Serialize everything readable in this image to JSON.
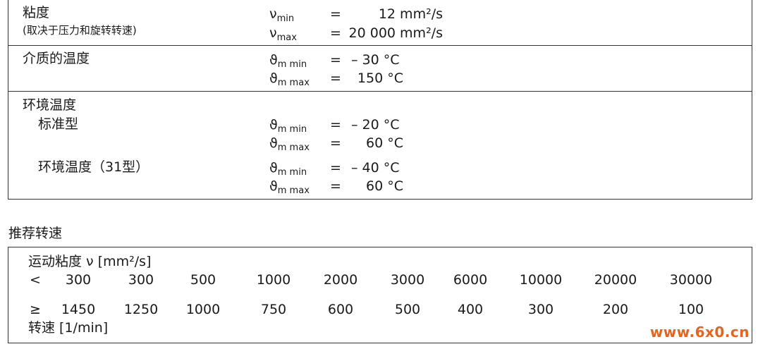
{
  "viscosity": {
    "label": "粘度",
    "note": "(取决于压力和旋转转速)",
    "rows": [
      {
        "sym": "ν",
        "sub": "min",
        "eq": "=",
        "val": "12 mm²/s"
      },
      {
        "sym": "ν",
        "sub": "max",
        "eq": "=",
        "val": "20 000 mm²/s"
      }
    ]
  },
  "medium_temp": {
    "label": "介质的温度",
    "rows": [
      {
        "sym": "ϑ",
        "sub": "m min",
        "eq": "=",
        "val": "– 30 °C"
      },
      {
        "sym": "ϑ",
        "sub": "m max",
        "eq": "=",
        "val": "150 °C"
      }
    ]
  },
  "ambient_temp": {
    "label": "环境温度",
    "standard": {
      "label": "标准型",
      "rows": [
        {
          "sym": "ϑ",
          "sub": "m min",
          "eq": "=",
          "val": "– 20 °C"
        },
        {
          "sym": "ϑ",
          "sub": "m max",
          "eq": "=",
          "val": "60 °C"
        }
      ]
    },
    "type31": {
      "label": "环境温度（31型）",
      "rows": [
        {
          "sym": "ϑ",
          "sub": "m min",
          "eq": "=",
          "val": "– 40 °C"
        },
        {
          "sym": "ϑ",
          "sub": "m max",
          "eq": "=",
          "val": "60 °C"
        }
      ]
    }
  },
  "recommended_speed": {
    "title": "推荐转速",
    "viscosity_header": "运动粘度 ν [mm²/s]",
    "lt_symbol": "<",
    "viscosity_values": [
      "300",
      "300",
      "500",
      "1000",
      "2000",
      "3000",
      "6000",
      "10000",
      "20000",
      "30000"
    ],
    "ge_symbol": "≥",
    "speed_values": [
      "1450",
      "1250",
      "1000",
      "750",
      "600",
      "500",
      "400",
      "300",
      "200",
      "100"
    ],
    "speed_header": "转速  [1/min]"
  },
  "watermark": "www.6x0.cn"
}
